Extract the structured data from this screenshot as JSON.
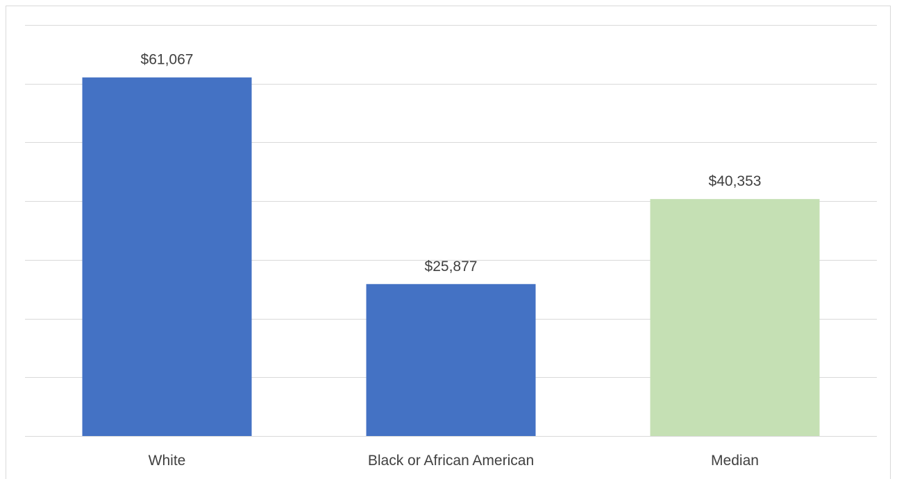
{
  "chart_data": {
    "type": "bar",
    "title": "",
    "xlabel": "",
    "ylabel": "",
    "categories": [
      "White",
      "Black or African American",
      "Median"
    ],
    "values": [
      61067,
      25877,
      40353
    ],
    "data_labels": [
      "$61,067",
      "$25,877",
      "$40,353"
    ],
    "bar_colors": [
      "#4472C4",
      "#4472C4",
      "#C5E0B4"
    ],
    "gridline_color": "#d9d9d9",
    "ylim": [
      0,
      70000
    ],
    "y_tick_step": 10000,
    "y_tick_labels_shown": false,
    "grid": true,
    "legend": "none"
  }
}
